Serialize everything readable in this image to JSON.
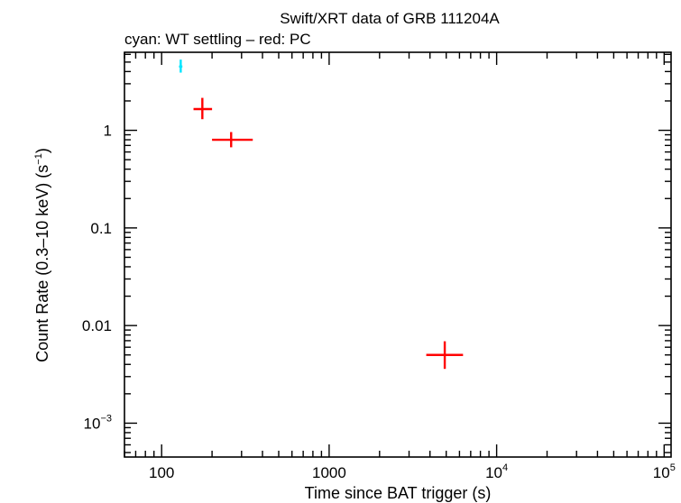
{
  "chart_data": {
    "type": "scatter",
    "title": "Swift/XRT data of GRB 111204A",
    "subtitle": "cyan: WT settling – red: PC",
    "xlabel": "Time since BAT trigger (s)",
    "ylabel_main": "Count Rate (0.3–10 keV) (s",
    "ylabel_sup": "−1",
    "ylabel_close": ")",
    "x_scale": "log",
    "y_scale": "log",
    "xlim": [
      60,
      110000
    ],
    "ylim": [
      0.00045,
      6.3
    ],
    "x_ticks": [
      {
        "value": 100,
        "label": "100",
        "sup": ""
      },
      {
        "value": 1000,
        "label": "1000",
        "sup": ""
      },
      {
        "value": 10000,
        "label": "10",
        "sup": "4"
      },
      {
        "value": 100000,
        "label": "10",
        "sup": "5"
      }
    ],
    "y_ticks": [
      {
        "value": 1,
        "label": "1",
        "sup": ""
      },
      {
        "value": 0.1,
        "label": "0.1",
        "sup": ""
      },
      {
        "value": 0.01,
        "label": "0.01",
        "sup": ""
      },
      {
        "value": 0.001,
        "label": "10",
        "sup": "−3"
      }
    ],
    "series": [
      {
        "color": "#00e5ff",
        "points": [
          {
            "x": 130,
            "xlo": 127,
            "xhi": 133,
            "y": 4.5,
            "ylo": 3.9,
            "yhi": 5.3
          }
        ]
      },
      {
        "color": "#ff0000",
        "points": [
          {
            "x": 175,
            "xlo": 155,
            "xhi": 200,
            "y": 1.65,
            "ylo": 1.3,
            "yhi": 2.15
          },
          {
            "x": 260,
            "xlo": 200,
            "xhi": 350,
            "y": 0.8,
            "ylo": 0.67,
            "yhi": 0.96
          },
          {
            "x": 4900,
            "xlo": 3800,
            "xhi": 6300,
            "y": 0.005,
            "ylo": 0.0036,
            "yhi": 0.0069
          }
        ]
      }
    ]
  }
}
